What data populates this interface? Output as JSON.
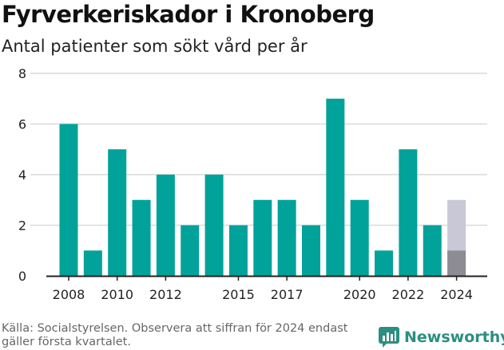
{
  "title": "Fyrverkeriskador i Kronoberg",
  "subtitle": "Antal patienter som sökt vård per år",
  "source": "Källa: Socialstyrelsen. Observera att siffran för 2024 endast gäller första kvartalet.",
  "brand": {
    "name": "Newsworthy",
    "icon": "newsworthy-logo-icon"
  },
  "colors": {
    "bar": "#00a29a",
    "bar_partial_bg": "#c9c8d6",
    "bar_partial": "#8d8c93",
    "grid": "#d9d9d9",
    "axis": "#222222"
  },
  "chart_data": {
    "type": "bar",
    "categories": [
      "2008",
      "2009",
      "2010",
      "2011",
      "2012",
      "2013",
      "2014",
      "2015",
      "2016",
      "2017",
      "2018",
      "2019",
      "2020",
      "2021",
      "2022",
      "2023",
      "2024"
    ],
    "values": [
      6,
      1,
      5,
      3,
      4,
      2,
      4,
      2,
      3,
      3,
      2,
      7,
      3,
      1,
      5,
      2,
      1
    ],
    "partial_background": {
      "category": "2024",
      "value": 3
    },
    "x_tick_labels": [
      "2008",
      "2010",
      "2012",
      "2015",
      "2017",
      "2020",
      "2022",
      "2024"
    ],
    "y_tick_labels": [
      "0",
      "2",
      "4",
      "6",
      "8"
    ],
    "ylim": [
      0,
      8
    ],
    "grid": true
  }
}
